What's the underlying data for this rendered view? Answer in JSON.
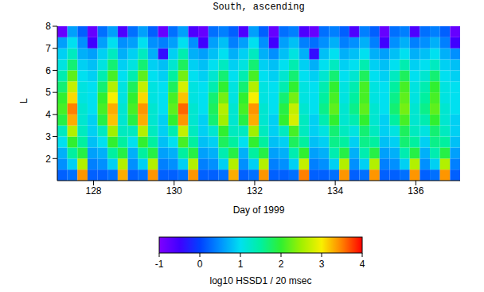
{
  "chart_data": {
    "type": "heatmap",
    "title": "South, ascending",
    "xlabel": "Day of 1999",
    "ylabel": "L",
    "xlim": [
      127.1,
      137.1
    ],
    "xticks": [
      128,
      130,
      132,
      134,
      136
    ],
    "ylim": [
      1,
      8
    ],
    "yticks": [
      2,
      3,
      4,
      5,
      6,
      7,
      8
    ],
    "cells": {
      "x_edges": [
        127.1,
        127.35,
        127.6,
        127.85,
        128.1,
        128.35,
        128.6,
        128.85,
        129.1,
        129.35,
        129.6,
        129.85,
        130.1,
        130.35,
        130.6,
        130.85,
        131.1,
        131.35,
        131.6,
        131.85,
        132.1,
        132.35,
        132.6,
        132.85,
        133.1,
        133.35,
        133.6,
        133.85,
        134.1,
        134.35,
        134.6,
        134.85,
        135.1,
        135.35,
        135.6,
        135.85,
        136.1,
        136.35,
        136.6,
        136.85,
        137.1
      ],
      "y_edges": [
        1,
        1.5,
        2,
        2.5,
        3,
        3.5,
        4,
        4.5,
        5,
        5.5,
        6,
        6.5,
        7,
        7.5,
        8
      ],
      "values": [
        [
          0.2,
          0.3,
          3.4,
          0.2,
          0.2,
          0.3,
          3.3,
          0.2,
          0.3,
          3.4,
          0.2,
          0.2,
          0.3,
          3.4,
          0.2,
          0.2,
          0.3,
          3.3,
          0.2,
          0.3,
          3.4,
          0.2,
          0.2,
          0.3,
          3.5,
          0.2,
          0.2,
          0.3,
          3.4,
          0.2,
          0.3,
          3.4,
          0.2,
          0.2,
          0.3,
          3.4,
          0.2,
          0.3,
          3.4,
          0.2
        ],
        [
          0.5,
          0.9,
          2.6,
          0.4,
          0.5,
          0.9,
          2.6,
          0.5,
          0.9,
          2.6,
          0.4,
          0.5,
          0.9,
          2.6,
          0.4,
          0.5,
          0.9,
          2.6,
          0.5,
          0.9,
          2.6,
          0.4,
          0.5,
          0.9,
          2.7,
          0.4,
          0.5,
          0.9,
          2.6,
          0.5,
          0.9,
          2.6,
          0.4,
          0.5,
          0.9,
          2.6,
          0.5,
          0.9,
          2.6,
          0.4
        ],
        [
          0.7,
          1.5,
          1.9,
          0.6,
          0.7,
          1.5,
          1.9,
          0.7,
          1.5,
          1.9,
          0.6,
          0.7,
          1.5,
          1.9,
          0.6,
          0.7,
          1.4,
          1.9,
          0.7,
          1.5,
          1.9,
          0.6,
          0.7,
          1.4,
          2.0,
          0.6,
          0.7,
          1.4,
          1.9,
          0.7,
          1.4,
          1.9,
          0.6,
          0.7,
          1.4,
          1.9,
          0.7,
          1.4,
          1.9,
          0.6
        ],
        [
          1.0,
          2.0,
          1.5,
          0.8,
          1.0,
          2.0,
          1.5,
          1.0,
          2.0,
          1.5,
          0.8,
          1.0,
          2.1,
          1.5,
          0.8,
          0.9,
          1.8,
          1.5,
          1.0,
          2.0,
          1.5,
          0.8,
          0.9,
          1.8,
          1.5,
          0.8,
          0.9,
          1.6,
          1.5,
          0.9,
          1.6,
          1.5,
          0.8,
          0.9,
          1.7,
          1.5,
          0.9,
          1.6,
          1.5,
          0.8
        ],
        [
          1.3,
          2.6,
          1.3,
          0.9,
          1.3,
          2.5,
          1.3,
          1.3,
          2.6,
          1.3,
          0.9,
          1.4,
          2.7,
          1.3,
          0.9,
          1.2,
          2.0,
          1.3,
          1.3,
          2.5,
          1.3,
          0.9,
          1.3,
          2.1,
          1.3,
          0.9,
          1.1,
          1.7,
          1.3,
          1.1,
          1.7,
          1.3,
          0.9,
          1.1,
          1.8,
          1.3,
          1.1,
          1.7,
          1.3,
          0.9
        ],
        [
          1.9,
          3.3,
          1.2,
          0.9,
          1.9,
          3.2,
          1.2,
          1.9,
          3.3,
          1.2,
          0.9,
          2.0,
          3.4,
          1.2,
          0.9,
          1.7,
          2.5,
          1.2,
          1.9,
          3.3,
          1.2,
          0.9,
          2.0,
          2.8,
          1.3,
          0.9,
          1.4,
          2.0,
          1.2,
          1.4,
          2.0,
          1.2,
          0.9,
          1.5,
          2.1,
          1.2,
          1.4,
          2.0,
          1.2,
          0.9
        ],
        [
          2.1,
          3.5,
          1.2,
          1.0,
          2.1,
          3.3,
          1.2,
          2.1,
          3.4,
          1.2,
          1.0,
          2.2,
          3.6,
          1.2,
          1.0,
          1.8,
          2.6,
          1.2,
          2.1,
          3.4,
          1.2,
          1.0,
          1.9,
          2.7,
          1.2,
          1.0,
          1.6,
          2.2,
          1.2,
          1.6,
          2.2,
          1.2,
          1.0,
          1.7,
          2.3,
          1.2,
          1.6,
          2.2,
          1.2,
          1.0
        ],
        [
          2.0,
          3.1,
          1.1,
          1.0,
          2.0,
          3.0,
          1.1,
          2.0,
          3.1,
          1.1,
          1.0,
          2.1,
          3.2,
          1.1,
          1.0,
          1.7,
          2.3,
          1.1,
          2.0,
          3.0,
          1.1,
          1.0,
          1.7,
          2.3,
          1.1,
          1.0,
          1.5,
          2.1,
          1.1,
          1.5,
          2.1,
          1.1,
          1.0,
          1.6,
          2.2,
          1.1,
          1.5,
          2.1,
          1.1,
          1.0
        ],
        [
          1.7,
          2.7,
          1.1,
          1.0,
          1.7,
          2.6,
          1.1,
          1.8,
          2.7,
          1.1,
          1.0,
          1.8,
          2.8,
          1.1,
          1.0,
          1.4,
          2.0,
          1.1,
          1.7,
          2.6,
          1.1,
          1.0,
          1.4,
          2.0,
          1.1,
          1.0,
          1.4,
          2.0,
          1.1,
          1.4,
          2.1,
          1.1,
          1.0,
          1.5,
          2.1,
          1.1,
          1.4,
          2.0,
          1.1,
          1.0
        ],
        [
          1.4,
          2.2,
          1.0,
          0.9,
          1.4,
          2.1,
          1.0,
          1.4,
          2.2,
          1.0,
          0.9,
          1.5,
          2.3,
          1.0,
          0.9,
          1.2,
          1.7,
          1.0,
          1.4,
          2.1,
          1.0,
          0.9,
          1.2,
          1.7,
          1.0,
          0.9,
          1.2,
          1.7,
          1.0,
          1.2,
          1.8,
          1.0,
          0.9,
          1.3,
          1.8,
          1.0,
          1.2,
          1.7,
          1.0,
          0.9
        ],
        [
          1.1,
          1.7,
          0.9,
          0.8,
          1.1,
          1.7,
          0.9,
          1.1,
          1.7,
          0.9,
          0.8,
          1.2,
          1.8,
          0.9,
          0.8,
          1.0,
          1.3,
          0.9,
          1.1,
          1.7,
          0.9,
          0.8,
          1.0,
          1.4,
          0.9,
          0.7,
          1.0,
          1.3,
          0.9,
          1.0,
          1.4,
          0.9,
          0.8,
          1.0,
          1.4,
          0.9,
          1.0,
          1.3,
          0.9,
          0.8
        ],
        [
          0.9,
          1.3,
          0.7,
          0.6,
          0.9,
          1.3,
          0.7,
          0.9,
          1.3,
          0.7,
          -0.4,
          0.9,
          1.4,
          0.7,
          0.6,
          0.8,
          1.0,
          0.7,
          0.9,
          1.3,
          0.7,
          0.5,
          0.8,
          1.1,
          0.7,
          -0.4,
          0.8,
          1.0,
          0.7,
          0.8,
          1.0,
          0.7,
          0.6,
          0.8,
          1.0,
          0.7,
          0.8,
          1.0,
          0.7,
          0.5
        ],
        [
          0.6,
          1.0,
          0.5,
          -0.5,
          0.6,
          1.0,
          0.5,
          0.6,
          1.0,
          0.5,
          0.4,
          0.6,
          1.0,
          0.5,
          -0.5,
          0.6,
          0.8,
          0.4,
          0.6,
          1.0,
          0.5,
          -0.5,
          0.6,
          0.8,
          0.4,
          0.3,
          0.5,
          0.7,
          0.4,
          0.5,
          0.7,
          0.4,
          -0.5,
          0.5,
          0.7,
          0.4,
          0.5,
          0.7,
          0.4,
          -0.5
        ],
        [
          -0.8,
          0.6,
          0.2,
          -0.8,
          0.3,
          0.6,
          -0.6,
          0.3,
          0.6,
          0.2,
          -0.8,
          0.3,
          0.6,
          -0.6,
          -0.8,
          0.3,
          0.4,
          0.2,
          -0.6,
          0.6,
          0.2,
          -0.8,
          0.3,
          0.4,
          -0.6,
          -0.8,
          0.3,
          0.4,
          0.2,
          -0.6,
          0.4,
          0.2,
          -0.8,
          0.3,
          0.4,
          -0.6,
          0.3,
          0.4,
          0.2,
          -0.8
        ]
      ]
    },
    "colorbar": {
      "label": "log10 HSSD1 / 20 msec",
      "range": [
        -1,
        4
      ],
      "ticks": [
        -1,
        0,
        1,
        2,
        3,
        4
      ],
      "colors": [
        "#7f00ff",
        "#4000ff",
        "#0040ff",
        "#0090ff",
        "#00e0f0",
        "#00f0a0",
        "#30f030",
        "#a0f000",
        "#f8f000",
        "#ff8000",
        "#ff0000"
      ]
    }
  }
}
